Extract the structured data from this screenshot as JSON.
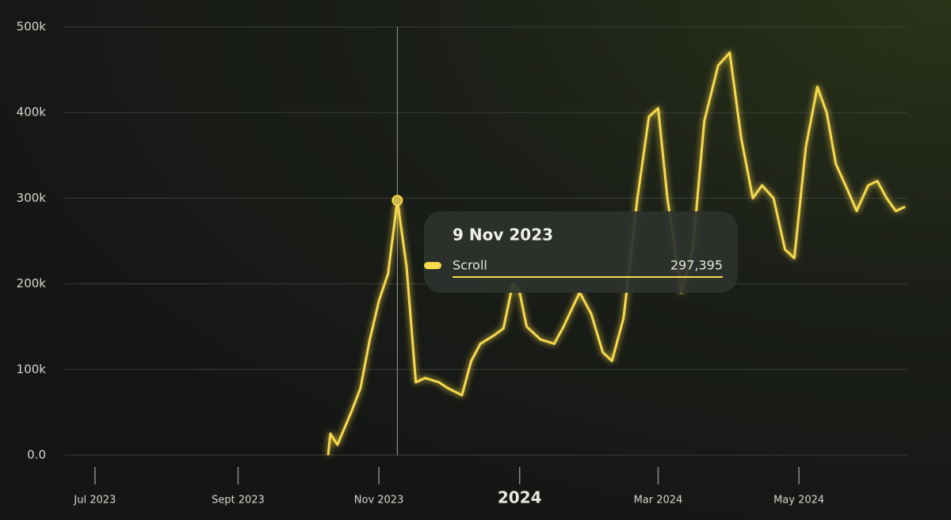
{
  "chart_data": {
    "type": "line",
    "x": [
      "2023-10-10",
      "2023-10-11",
      "2023-10-14",
      "2023-10-20",
      "2023-10-24",
      "2023-10-28",
      "2023-11-01",
      "2023-11-05",
      "2023-11-09",
      "2023-11-13",
      "2023-11-17",
      "2023-11-21",
      "2023-11-27",
      "2023-12-01",
      "2023-12-07",
      "2023-12-11",
      "2023-12-15",
      "2023-12-21",
      "2023-12-25",
      "2023-12-29",
      "2024-01-01",
      "2024-01-04",
      "2024-01-10",
      "2024-01-16",
      "2024-01-20",
      "2024-01-27",
      "2024-02-01",
      "2024-02-06",
      "2024-02-10",
      "2024-02-15",
      "2024-02-21",
      "2024-02-26",
      "2024-03-01",
      "2024-03-05",
      "2024-03-11",
      "2024-03-16",
      "2024-03-21",
      "2024-03-27",
      "2024-04-01",
      "2024-04-06",
      "2024-04-11",
      "2024-04-15",
      "2024-04-20",
      "2024-04-25",
      "2024-04-29",
      "2024-05-04",
      "2024-05-09",
      "2024-05-13",
      "2024-05-17",
      "2024-05-22",
      "2024-05-26",
      "2024-05-31",
      "2024-06-04",
      "2024-06-08",
      "2024-06-12",
      "2024-06-16"
    ],
    "series": [
      {
        "name": "Scroll",
        "color": "#f7d94c",
        "values": [
          0,
          25000,
          12000,
          50000,
          78000,
          134000,
          180000,
          212000,
          297395,
          220000,
          85000,
          90000,
          85000,
          78000,
          70000,
          110000,
          130000,
          140000,
          148000,
          200000,
          190000,
          150000,
          135000,
          130000,
          150000,
          190000,
          165000,
          120000,
          110000,
          160000,
          300000,
          395000,
          405000,
          300000,
          190000,
          240000,
          390000,
          455000,
          470000,
          370000,
          300000,
          315000,
          300000,
          240000,
          230000,
          360000,
          430000,
          400000,
          340000,
          310000,
          285000,
          315000,
          320000,
          300000,
          285000,
          290000
        ]
      }
    ],
    "xlim": [
      "2023-06-18",
      "2024-06-17"
    ],
    "xticks": [
      {
        "value": "2023-07-01",
        "label": "Jul 2023"
      },
      {
        "value": "2023-09-01",
        "label": "Sept 2023"
      },
      {
        "value": "2023-11-01",
        "label": "Nov 2023"
      },
      {
        "value": "2024-01-01",
        "label": "2024"
      },
      {
        "value": "2024-03-01",
        "label": "Mar 2024"
      },
      {
        "value": "2024-05-01",
        "label": "May 2024"
      }
    ],
    "ylim": [
      0,
      500000
    ],
    "yticks": [
      {
        "value": 0,
        "label": "0.0"
      },
      {
        "value": 100000,
        "label": "100k"
      },
      {
        "value": 200000,
        "label": "200k"
      },
      {
        "value": 300000,
        "label": "300k"
      },
      {
        "value": 400000,
        "label": "400k"
      },
      {
        "value": 500000,
        "label": "500k"
      }
    ],
    "grid": true,
    "tooltip": {
      "title": "9 Nov 2023",
      "x": "2023-11-09",
      "value_label": "297,395"
    }
  }
}
